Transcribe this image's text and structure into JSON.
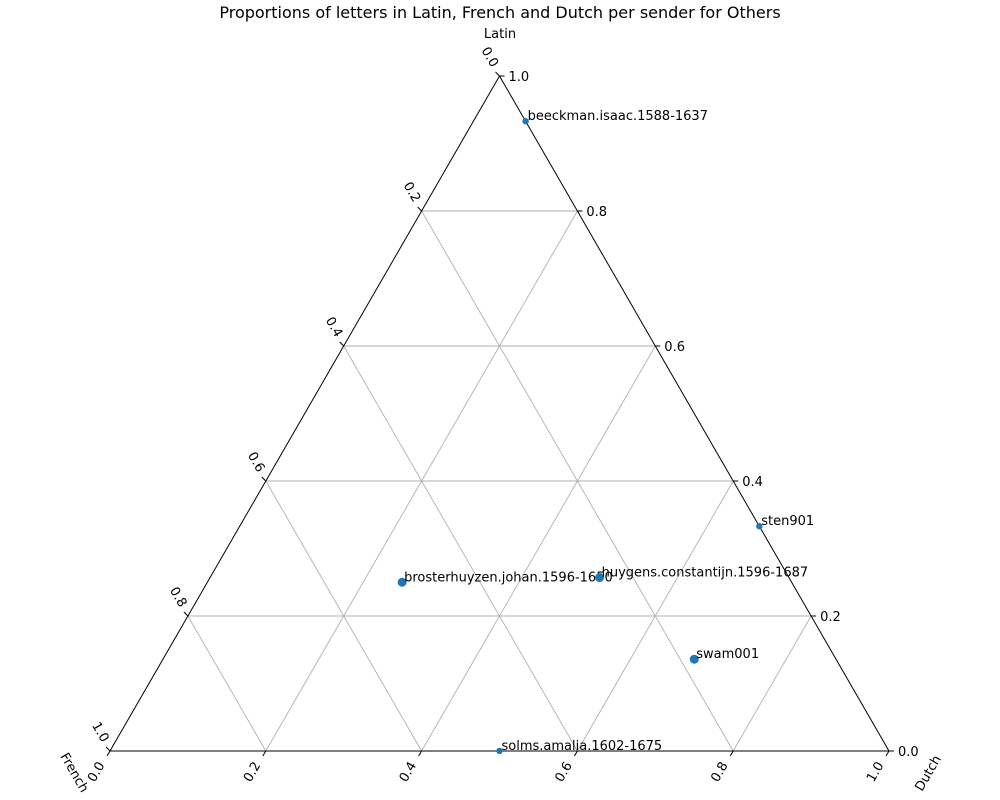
{
  "chart_data": {
    "type": "scatter",
    "subtype": "ternary",
    "title": "Proportions of letters in Latin, French and Dutch per sender for Others",
    "corner_labels": {
      "top": "Latin",
      "left": "French",
      "right": "Dutch"
    },
    "grid": true,
    "ticks": {
      "latin": [
        "0.0",
        "0.2",
        "0.4",
        "0.6",
        "0.8",
        "1.0"
      ],
      "french": [
        "0.0",
        "0.2",
        "0.4",
        "0.6",
        "0.8",
        "1.0"
      ],
      "dutch": [
        "0.0",
        "0.2",
        "0.4",
        "0.6",
        "0.8",
        "1.0"
      ]
    },
    "marker_color": "#1f77b4",
    "points": [
      {
        "label": "beeckman.isaac.1588-1637",
        "latin": 0.933,
        "french": 0.0,
        "dutch": 0.067,
        "size": "small"
      },
      {
        "label": "sten901",
        "latin": 0.333,
        "french": 0.0,
        "dutch": 0.667,
        "size": "small"
      },
      {
        "label": "brosterhuyzen.johan.1596-1650",
        "latin": 0.25,
        "french": 0.5,
        "dutch": 0.25,
        "size": "large"
      },
      {
        "label": "huygens.constantijn.1596-1687",
        "latin": 0.257,
        "french": 0.243,
        "dutch": 0.5,
        "size": "large"
      },
      {
        "label": "swam001",
        "latin": 0.136,
        "french": 0.182,
        "dutch": 0.682,
        "size": "large"
      },
      {
        "label": "solms.amalia.1602-1675",
        "latin": 0.0,
        "french": 0.5,
        "dutch": 0.5,
        "size": "small"
      }
    ]
  }
}
